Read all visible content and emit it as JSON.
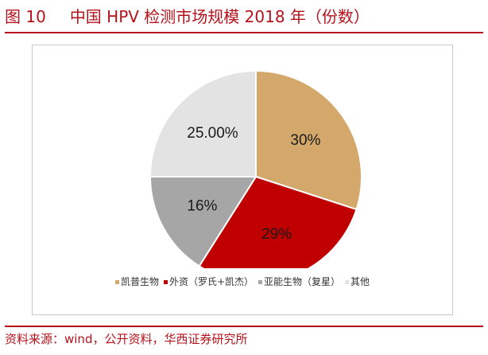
{
  "figure": {
    "number": "图 10",
    "title": "中国 HPV 检测市场规模 2018 年（份数）",
    "source": "资料来源：wind，公开资料，华西证券研究所"
  },
  "colors": {
    "accent": "#b5121b"
  },
  "chart_data": {
    "type": "pie",
    "categories": [
      "凯普生物",
      "外资（罗氏+凯杰）",
      "亚能生物（复星）",
      "其他"
    ],
    "values": [
      30,
      29,
      16,
      25
    ],
    "labels": [
      "30%",
      "29%",
      "16%",
      "25.00%"
    ],
    "colors": [
      "#d4a86a",
      "#c00000",
      "#a6a6a6",
      "#e3e3e3"
    ],
    "start": "12 o'clock, clockwise",
    "legend_position": "bottom",
    "legend": [
      {
        "name": "凯普生物",
        "color": "#d4a86a"
      },
      {
        "name": "外资（罗氏+凯杰）",
        "color": "#c00000"
      },
      {
        "name": "亚能生物（复星）",
        "color": "#a6a6a6"
      },
      {
        "name": "其他",
        "color": "#e3e3e3"
      }
    ]
  }
}
